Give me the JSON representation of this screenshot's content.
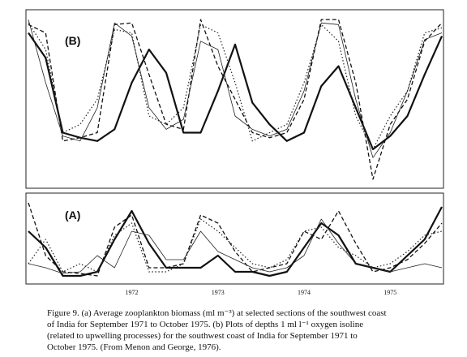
{
  "chart_data": [
    {
      "type": "line",
      "title": "(B)",
      "categories": [
        null,
        null,
        null,
        null,
        null,
        null,
        null,
        null,
        null,
        null,
        null,
        null,
        null,
        null,
        null,
        null,
        null,
        null,
        null,
        null,
        null,
        null,
        null,
        null,
        null
      ],
      "ylim": [
        0,
        10
      ],
      "series": [
        {
          "color": "#111",
          "style": "solid",
          "width": 2.2,
          "values": [
            9.0,
            7.5,
            3.0,
            2.7,
            2.5,
            3.2,
            6.0,
            8.0,
            6.6,
            3.0,
            3.0,
            5.5,
            8.3,
            4.8,
            3.5,
            2.5,
            3.0,
            5.8,
            7.0,
            4.5,
            2.0,
            2.8,
            4.0,
            6.5,
            8.8
          ]
        },
        {
          "color": "#111",
          "style": "dashed",
          "width": 1.3,
          "values": [
            9.5,
            9.0,
            2.5,
            2.7,
            3.0,
            9.5,
            9.6,
            6.5,
            3.5,
            3.2,
            9.8,
            7.0,
            5.0,
            3.0,
            2.7,
            3.0,
            5.0,
            9.8,
            9.8,
            6.0,
            0.2,
            3.5,
            5.0,
            8.5,
            9.6
          ]
        },
        {
          "color": "#222",
          "style": "dotted",
          "width": 1.2,
          "values": [
            9.6,
            8.0,
            3.0,
            3.5,
            5.0,
            9.2,
            9.0,
            4.0,
            3.5,
            4.5,
            9.5,
            9.0,
            6.0,
            2.5,
            3.0,
            3.5,
            6.0,
            9.5,
            8.5,
            4.0,
            2.0,
            4.0,
            5.5,
            9.0,
            9.3
          ]
        },
        {
          "color": "#222",
          "style": "solid",
          "width": 0.8,
          "values": [
            9.8,
            6.0,
            2.8,
            2.5,
            4.5,
            9.6,
            8.8,
            4.5,
            3.2,
            3.8,
            8.5,
            8.0,
            4.0,
            3.2,
            2.8,
            3.2,
            5.5,
            9.6,
            9.5,
            5.0,
            1.5,
            3.0,
            5.5,
            8.6,
            9.0
          ]
        }
      ]
    },
    {
      "type": "line",
      "title": "(A)",
      "categories": [
        null,
        null,
        null,
        null,
        null,
        null,
        "1972",
        null,
        null,
        null,
        null,
        "1973",
        null,
        null,
        null,
        null,
        "1974",
        null,
        null,
        null,
        null,
        "1975",
        null,
        null,
        null
      ],
      "ylim": [
        0,
        10
      ],
      "series": [
        {
          "color": "#111",
          "style": "solid",
          "width": 2.2,
          "values": [
            6.0,
            4.0,
            0.5,
            0.5,
            1.0,
            5.0,
            8.5,
            4.5,
            1.5,
            1.5,
            1.5,
            3.0,
            1.0,
            1.0,
            0.5,
            1.0,
            4.0,
            7.0,
            5.5,
            2.0,
            1.5,
            1.0,
            3.0,
            5.0,
            9.0
          ]
        },
        {
          "color": "#111",
          "style": "dashed",
          "width": 1.3,
          "values": [
            9.5,
            3.0,
            1.0,
            0.8,
            0.5,
            6.5,
            8.0,
            1.5,
            1.5,
            2.0,
            8.0,
            7.0,
            3.5,
            1.0,
            1.5,
            2.0,
            6.0,
            5.0,
            8.5,
            4.5,
            1.0,
            1.5,
            2.5,
            4.5,
            7.0
          ]
        },
        {
          "color": "#222",
          "style": "dotted",
          "width": 1.2,
          "values": [
            2.0,
            5.0,
            1.0,
            2.0,
            1.0,
            5.5,
            7.0,
            1.0,
            1.0,
            2.0,
            7.5,
            6.0,
            4.0,
            2.0,
            1.5,
            2.5,
            6.0,
            6.5,
            4.0,
            3.0,
            1.5,
            2.0,
            3.5,
            5.5,
            6.0
          ]
        },
        {
          "color": "#222",
          "style": "solid",
          "width": 0.8,
          "values": [
            2.0,
            1.5,
            0.8,
            1.0,
            3.0,
            1.5,
            6.0,
            5.5,
            2.5,
            2.5,
            6.0,
            3.5,
            2.5,
            1.5,
            1.0,
            1.5,
            3.0,
            7.5,
            4.5,
            2.0,
            1.5,
            1.0,
            1.5,
            2.0,
            1.5
          ]
        }
      ]
    }
  ],
  "caption": [
    "Figure 9.  (a) Average zooplankton biomass (ml m⁻³) at selected sections of the southwest coast",
    "of India for September 1971 to October 1975. (b) Plots of depths 1 ml l⁻¹ oxygen isoline",
    "(related to upwelling processes) for the southwest coast of India for September 1971 to",
    "October 1975. (From Menon and George, 1976)."
  ]
}
